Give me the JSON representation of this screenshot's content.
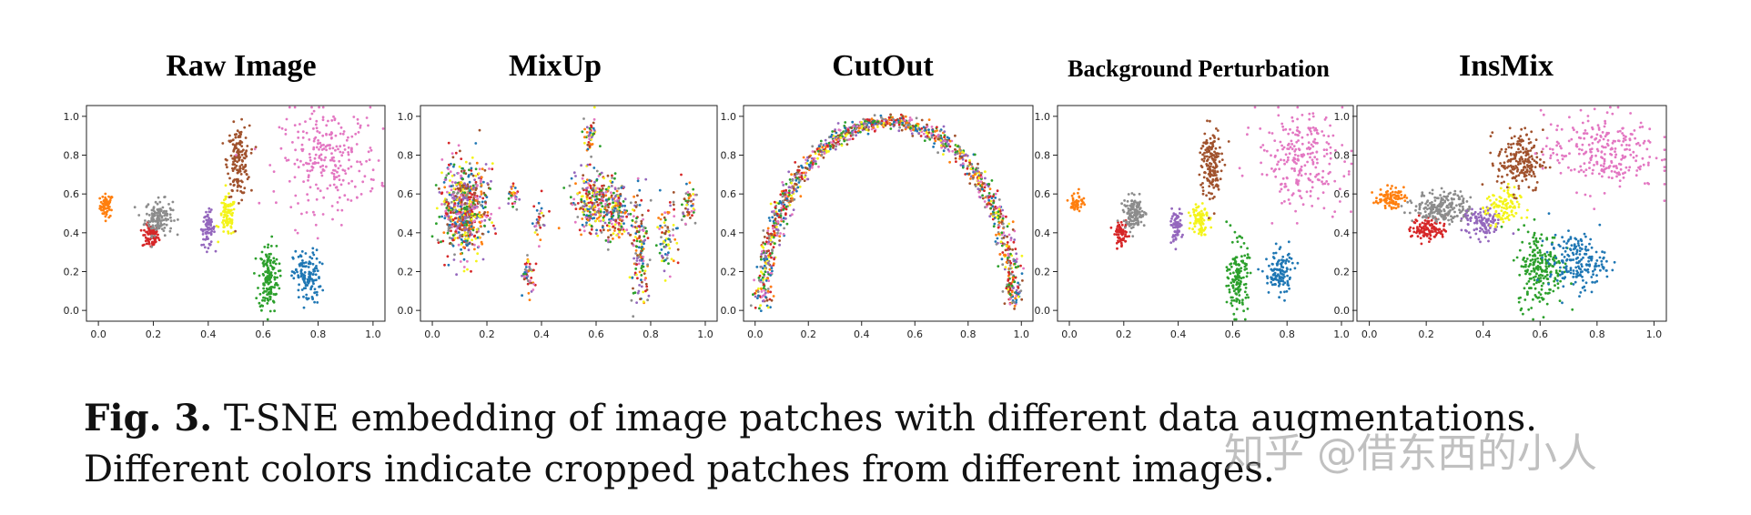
{
  "figure": {
    "panels": [
      {
        "title": "Raw Image"
      },
      {
        "title": "MixUp"
      },
      {
        "title": "CutOut"
      },
      {
        "title": "Background Perturbation"
      },
      {
        "title": "InsMix"
      }
    ],
    "caption_label": "Fig. 3.",
    "caption_text": " T-SNE embedding of image patches with different data augmentations. Different colors indicate cropped patches from different images.",
    "watermark": "知乎 @借东西的小人"
  },
  "colors": {
    "orange": "#ff7f0e",
    "red": "#d62728",
    "gray": "#8c8c8c",
    "purple": "#9467bd",
    "yellow": "#f4f41a",
    "brown": "#a0522d",
    "green": "#2ca02c",
    "blue": "#1f77b4",
    "pink": "#e377c2"
  },
  "chart_data": [
    {
      "type": "scatter",
      "title": "Raw Image",
      "xlim": [
        0.0,
        1.0
      ],
      "ylim": [
        0.0,
        1.0
      ],
      "xticks": [
        "0.0",
        "0.2",
        "0.4",
        "0.6",
        "0.8",
        "1.0"
      ],
      "yticks": [
        "0.0",
        "0.2",
        "0.4",
        "0.6",
        "0.8",
        "1.0"
      ],
      "clusters": [
        {
          "color": "orange",
          "cx": 0.03,
          "cy": 0.54,
          "sx": 0.012,
          "sy": 0.03,
          "n": 60
        },
        {
          "color": "red",
          "cx": 0.19,
          "cy": 0.38,
          "sx": 0.015,
          "sy": 0.03,
          "n": 80
        },
        {
          "color": "gray",
          "cx": 0.22,
          "cy": 0.48,
          "sx": 0.025,
          "sy": 0.045,
          "n": 140
        },
        {
          "color": "purple",
          "cx": 0.4,
          "cy": 0.42,
          "sx": 0.012,
          "sy": 0.045,
          "n": 80
        },
        {
          "color": "yellow",
          "cx": 0.47,
          "cy": 0.48,
          "sx": 0.015,
          "sy": 0.05,
          "n": 90
        },
        {
          "color": "brown",
          "cx": 0.51,
          "cy": 0.77,
          "sx": 0.02,
          "sy": 0.09,
          "n": 160
        },
        {
          "color": "green",
          "cx": 0.62,
          "cy": 0.17,
          "sx": 0.018,
          "sy": 0.09,
          "n": 160
        },
        {
          "color": "blue",
          "cx": 0.76,
          "cy": 0.17,
          "sx": 0.025,
          "sy": 0.07,
          "n": 130
        },
        {
          "color": "pink",
          "cx": 0.84,
          "cy": 0.78,
          "sx": 0.09,
          "sy": 0.13,
          "n": 260
        }
      ]
    },
    {
      "type": "scatter",
      "title": "MixUp",
      "xlim": [
        0.0,
        1.0
      ],
      "ylim": [
        0.0,
        1.0
      ],
      "xticks": [
        "0.0",
        "0.2",
        "0.4",
        "0.6",
        "0.8",
        "1.0"
      ],
      "yticks": [
        "0.0",
        "0.2",
        "0.4",
        "0.6",
        "0.8",
        "1.0"
      ],
      "mixed_clusters": [
        {
          "cx": 0.12,
          "cy": 0.52,
          "sx": 0.04,
          "sy": 0.12,
          "n": 700
        },
        {
          "cx": 0.3,
          "cy": 0.58,
          "sx": 0.01,
          "sy": 0.03,
          "n": 30
        },
        {
          "cx": 0.39,
          "cy": 0.47,
          "sx": 0.01,
          "sy": 0.05,
          "n": 30
        },
        {
          "cx": 0.35,
          "cy": 0.18,
          "sx": 0.012,
          "sy": 0.06,
          "n": 50
        },
        {
          "cx": 0.58,
          "cy": 0.9,
          "sx": 0.012,
          "sy": 0.05,
          "n": 50
        },
        {
          "cx": 0.6,
          "cy": 0.56,
          "sx": 0.04,
          "sy": 0.08,
          "n": 300
        },
        {
          "cx": 0.68,
          "cy": 0.5,
          "sx": 0.02,
          "sy": 0.08,
          "n": 120
        },
        {
          "cx": 0.76,
          "cy": 0.3,
          "sx": 0.018,
          "sy": 0.14,
          "n": 150
        },
        {
          "cx": 0.86,
          "cy": 0.4,
          "sx": 0.018,
          "sy": 0.09,
          "n": 80
        },
        {
          "cx": 0.94,
          "cy": 0.54,
          "sx": 0.012,
          "sy": 0.05,
          "n": 50
        }
      ]
    },
    {
      "type": "scatter",
      "title": "CutOut",
      "xlim": [
        0.0,
        1.0
      ],
      "ylim": [
        0.0,
        1.0
      ],
      "xticks": [
        "0.0",
        "0.2",
        "0.4",
        "0.6",
        "0.8",
        "1.0"
      ],
      "yticks": [
        "0.0",
        "0.2",
        "0.4",
        "0.6",
        "0.8",
        "1.0"
      ],
      "arch": {
        "cx": 0.5,
        "cy": 0.02,
        "rx": 0.47,
        "ry": 0.95,
        "n": 1300,
        "width": 0.018
      }
    },
    {
      "type": "scatter",
      "title": "Background Perturbation",
      "xlim": [
        0.0,
        1.0
      ],
      "ylim": [
        0.0,
        1.0
      ],
      "xticks": [
        "0.0",
        "0.2",
        "0.4",
        "0.6",
        "0.8",
        "1.0"
      ],
      "yticks": [
        "0.0",
        "0.2",
        "0.4",
        "0.6",
        "0.8",
        "1.0"
      ],
      "clusters": [
        {
          "color": "orange",
          "cx": 0.03,
          "cy": 0.56,
          "sx": 0.012,
          "sy": 0.025,
          "n": 50
        },
        {
          "color": "red",
          "cx": 0.19,
          "cy": 0.39,
          "sx": 0.012,
          "sy": 0.03,
          "n": 70
        },
        {
          "color": "gray",
          "cx": 0.24,
          "cy": 0.5,
          "sx": 0.02,
          "sy": 0.04,
          "n": 130
        },
        {
          "color": "purple",
          "cx": 0.39,
          "cy": 0.43,
          "sx": 0.012,
          "sy": 0.04,
          "n": 70
        },
        {
          "color": "yellow",
          "cx": 0.48,
          "cy": 0.48,
          "sx": 0.015,
          "sy": 0.045,
          "n": 80
        },
        {
          "color": "brown",
          "cx": 0.52,
          "cy": 0.75,
          "sx": 0.02,
          "sy": 0.1,
          "n": 160
        },
        {
          "color": "green",
          "cx": 0.62,
          "cy": 0.17,
          "sx": 0.018,
          "sy": 0.09,
          "n": 150
        },
        {
          "color": "blue",
          "cx": 0.77,
          "cy": 0.19,
          "sx": 0.025,
          "sy": 0.06,
          "n": 120
        },
        {
          "color": "pink",
          "cx": 0.85,
          "cy": 0.78,
          "sx": 0.08,
          "sy": 0.12,
          "n": 240
        }
      ]
    },
    {
      "type": "scatter",
      "title": "InsMix",
      "xlim": [
        0.0,
        1.0
      ],
      "ylim": [
        0.0,
        1.0
      ],
      "xticks": [
        "0.0",
        "0.2",
        "0.4",
        "0.6",
        "0.8",
        "1.0"
      ],
      "yticks": [
        "0.0",
        "0.2",
        "0.4",
        "0.6",
        "0.8",
        "1.0"
      ],
      "clusters": [
        {
          "color": "orange",
          "cx": 0.07,
          "cy": 0.58,
          "sx": 0.025,
          "sy": 0.025,
          "n": 90
        },
        {
          "color": "red",
          "cx": 0.21,
          "cy": 0.42,
          "sx": 0.03,
          "sy": 0.03,
          "n": 110
        },
        {
          "color": "gray",
          "cx": 0.26,
          "cy": 0.53,
          "sx": 0.05,
          "sy": 0.04,
          "n": 220
        },
        {
          "color": "purple",
          "cx": 0.4,
          "cy": 0.45,
          "sx": 0.035,
          "sy": 0.04,
          "n": 110
        },
        {
          "color": "yellow",
          "cx": 0.47,
          "cy": 0.53,
          "sx": 0.03,
          "sy": 0.05,
          "n": 110
        },
        {
          "color": "brown",
          "cx": 0.53,
          "cy": 0.77,
          "sx": 0.04,
          "sy": 0.08,
          "n": 200
        },
        {
          "color": "green",
          "cx": 0.6,
          "cy": 0.22,
          "sx": 0.04,
          "sy": 0.1,
          "n": 220
        },
        {
          "color": "blue",
          "cx": 0.73,
          "cy": 0.25,
          "sx": 0.05,
          "sy": 0.07,
          "n": 190
        },
        {
          "color": "pink",
          "cx": 0.81,
          "cy": 0.82,
          "sx": 0.1,
          "sy": 0.1,
          "n": 260
        }
      ]
    }
  ]
}
